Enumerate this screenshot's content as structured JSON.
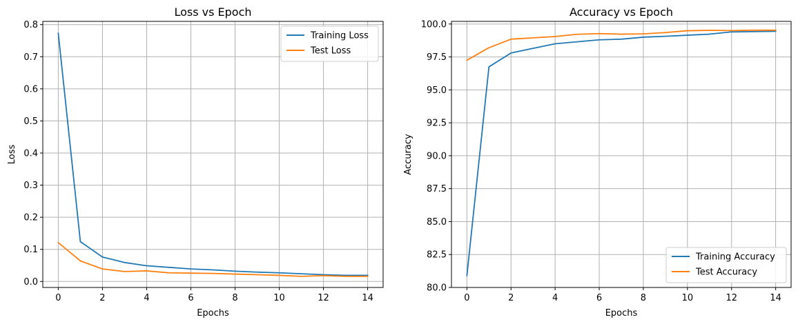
{
  "chart_data": [
    {
      "type": "line",
      "title": "Loss vs Epoch",
      "xlabel": "Epochs",
      "ylabel": "Loss",
      "xlim": [
        -0.7,
        14.7
      ],
      "ylim": [
        -0.0187,
        0.8101
      ],
      "xticks": [
        0,
        2,
        4,
        6,
        8,
        10,
        12,
        14
      ],
      "xtick_labels": [
        "0",
        "2",
        "4",
        "6",
        "8",
        "10",
        "12",
        "14"
      ],
      "yticks": [
        0.0,
        0.1,
        0.2,
        0.3,
        0.4,
        0.5,
        0.6,
        0.7,
        0.8
      ],
      "ytick_labels": [
        "0.0",
        "0.1",
        "0.2",
        "0.3",
        "0.4",
        "0.5",
        "0.6",
        "0.7",
        "0.8"
      ],
      "grid": true,
      "legend_position": "top-right",
      "x": [
        0,
        1,
        2,
        3,
        4,
        5,
        6,
        7,
        8,
        9,
        10,
        11,
        12,
        13,
        14
      ],
      "series": [
        {
          "name": "Training Loss",
          "color": "#1f77b4",
          "values": [
            0.773,
            0.124,
            0.076,
            0.059,
            0.049,
            0.044,
            0.039,
            0.036,
            0.032,
            0.029,
            0.027,
            0.024,
            0.021,
            0.019,
            0.019
          ]
        },
        {
          "name": "Test Loss",
          "color": "#ff7f0e",
          "values": [
            0.121,
            0.064,
            0.039,
            0.031,
            0.033,
            0.027,
            0.026,
            0.025,
            0.023,
            0.021,
            0.019,
            0.016,
            0.018,
            0.016,
            0.016
          ]
        }
      ]
    },
    {
      "type": "line",
      "title": "Accuracy vs Epoch",
      "xlabel": "Epochs",
      "ylabel": "Accuracy",
      "xlim": [
        -0.7,
        14.7
      ],
      "ylim": [
        80.0,
        100.2
      ],
      "xticks": [
        0,
        2,
        4,
        6,
        8,
        10,
        12,
        14
      ],
      "xtick_labels": [
        "0",
        "2",
        "4",
        "6",
        "8",
        "10",
        "12",
        "14"
      ],
      "yticks": [
        80.0,
        82.5,
        85.0,
        87.5,
        90.0,
        92.5,
        95.0,
        97.5,
        100.0
      ],
      "ytick_labels": [
        "80.0",
        "82.5",
        "85.0",
        "87.5",
        "90.0",
        "92.5",
        "95.0",
        "97.5",
        "100.0"
      ],
      "grid": true,
      "legend_position": "bottom-right",
      "x": [
        0,
        1,
        2,
        3,
        4,
        5,
        6,
        7,
        8,
        9,
        10,
        11,
        12,
        13,
        14
      ],
      "series": [
        {
          "name": "Training Accuracy",
          "color": "#1f77b4",
          "values": [
            80.9,
            96.75,
            97.8,
            98.15,
            98.5,
            98.65,
            98.8,
            98.85,
            99.0,
            99.07,
            99.15,
            99.23,
            99.4,
            99.42,
            99.45
          ]
        },
        {
          "name": "Test Accuracy",
          "color": "#ff7f0e",
          "values": [
            97.25,
            98.2,
            98.85,
            98.95,
            99.05,
            99.22,
            99.27,
            99.23,
            99.25,
            99.35,
            99.49,
            99.52,
            99.5,
            99.53,
            99.53
          ]
        }
      ]
    }
  ]
}
